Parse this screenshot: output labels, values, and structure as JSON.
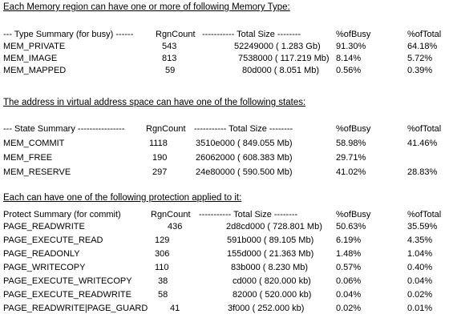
{
  "type_section": {
    "heading": "Each Memory region can have one or more of following  Memory Type:",
    "header": {
      "name": "--- Type Summary (for busy) ------",
      "count": "RgnCount",
      "size": "----------- Total Size --------",
      "busy": "%ofBusy",
      "total": "%ofTotal"
    },
    "rows": [
      {
        "name": "MEM_PRIVATE",
        "count": "543",
        "size": "52249000 (  1.283 Gb)",
        "busy": "91.30%",
        "total": "64.18%"
      },
      {
        "name": "MEM_IMAGE",
        "count": "813",
        "size": "7538000 ( 117.219 Mb)",
        "busy": "8.14%",
        "total": "5.72%"
      },
      {
        "name": "MEM_MAPPED",
        "count": "59",
        "size": "80d000 (  8.051 Mb)",
        "busy": "0.56%",
        "total": "0.39%"
      }
    ]
  },
  "state_section": {
    "heading": "The address in virtual address space can have one of the following states:",
    "header": {
      "name": "--- State Summary ----------------",
      "count": "RgnCount",
      "size": "----------- Total Size --------",
      "busy": "%ofBusy",
      "total": "%ofTotal"
    },
    "rows": [
      {
        "name": "MEM_COMMIT",
        "count": "1118",
        "size": "3510e000 ( 849.055 Mb)",
        "busy": "58.98%",
        "total": "41.46%"
      },
      {
        "name": "MEM_FREE",
        "count": "190",
        "size": "26062000 ( 608.383 Mb)",
        "busy": "29.71%",
        "total": ""
      },
      {
        "name": "MEM_RESERVE",
        "count": "297",
        "size": "24e80000 ( 590.500 Mb)",
        "busy": "41.02%",
        "total": "28.83%"
      }
    ]
  },
  "protect_section": {
    "heading": "Each can have one of the following protection applied to it:",
    "header": {
      "name": "Protect Summary (for commit)",
      "count": "RgnCount",
      "size": "----------- Total Size --------",
      "busy": "%ofBusy",
      "total": "%ofTotal"
    },
    "rows": [
      {
        "name": "PAGE_READWRITE",
        "count": "436",
        "size": "2d8cd000 ( 728.801 Mb)",
        "busy": "50.63%",
        "total": "35.59%"
      },
      {
        "name": "PAGE_EXECUTE_READ",
        "count": "129",
        "size": "591b000 (  89.105 Mb)",
        "busy": "6.19%",
        "total": "4.35%"
      },
      {
        "name": "PAGE_READONLY",
        "count": "306",
        "size": "155d000 (  21.363 Mb)",
        "busy": "1.48%",
        "total": "1.04%"
      },
      {
        "name": "PAGE_WRITECOPY",
        "count": "110",
        "size": "83b000 (  8.230 Mb)",
        "busy": "0.57%",
        "total": "0.40%"
      },
      {
        "name": "PAGE_EXECUTE_WRITECOPY",
        "count": "38",
        "size": "cd000 ( 820.000 kb)",
        "busy": "0.06%",
        "total": "0.04%"
      },
      {
        "name": "PAGE_EXECUTE_READWRITE",
        "count": "58",
        "size": "82000 ( 520.000 kb)",
        "busy": "0.04%",
        "total": "0.02%"
      },
      {
        "name": "PAGE_READWRITE|PAGE_GUARD",
        "count": "41",
        "size": "3f000 ( 252.000 kb)",
        "busy": "0.02%",
        "total": "0.01%"
      }
    ]
  }
}
